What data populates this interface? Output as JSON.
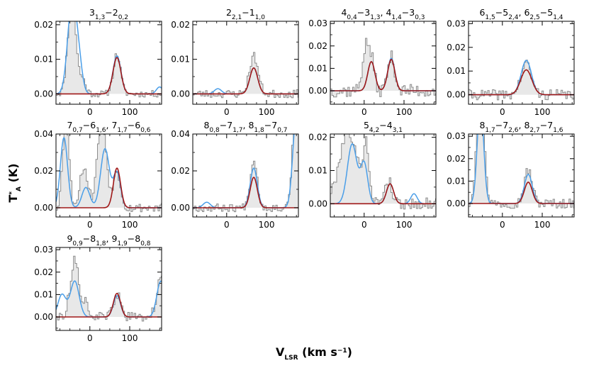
{
  "figure": {
    "xlabel": "V",
    "xlabel_sub": "LSR",
    "xlabel_unit": " (km s",
    "xlabel_sup": "−1",
    "xlabel_end": ")",
    "ylabel": "T",
    "ylabel_sup": "*",
    "ylabel_sub": "A",
    "ylabel_unit": " (K)"
  },
  "colors": {
    "observed": "#8c8c8c",
    "observed_fill": "#e8e8e8",
    "model_blue": "#4a9ee8",
    "model_red": "#a01818",
    "axis": "#000000"
  },
  "chart_data": [
    {
      "type": "line",
      "title_parts": [
        [
          "3",
          "1,3"
        ],
        [
          "−2",
          "0,2"
        ]
      ],
      "xlim": [
        -85,
        180
      ],
      "ylim": [
        -0.003,
        0.021
      ],
      "xticks": [
        "0",
        "100"
      ],
      "xtick_values": [
        0,
        100
      ],
      "yticks": [
        "0.00",
        "0.01",
        "0.02"
      ],
      "ytick_values": [
        0,
        0.01,
        0.02
      ],
      "red_lines": [
        {
          "center": 68,
          "amp": 0.0105,
          "sigma": 10
        }
      ],
      "blue_lines": [
        {
          "center": -45,
          "amp": 0.026,
          "sigma": 11
        },
        {
          "center": -28,
          "amp": 0.008,
          "sigma": 9
        },
        {
          "center": 68,
          "amp": 0.011,
          "sigma": 10
        },
        {
          "center": 175,
          "amp": 0.002,
          "sigma": 8
        }
      ],
      "obs_lines": [
        {
          "center": -45,
          "amp": 0.028,
          "sigma": 10
        },
        {
          "center": -18,
          "amp": 0.004,
          "sigma": 8
        },
        {
          "center": 68,
          "amp": 0.0115,
          "sigma": 9
        }
      ],
      "noise": 0.001,
      "seed": 11
    },
    {
      "type": "line",
      "title_parts": [
        [
          "2",
          "2,1"
        ],
        [
          "−1",
          "1,0"
        ]
      ],
      "xlim": [
        -85,
        180
      ],
      "ylim": [
        -0.003,
        0.021
      ],
      "xticks": [
        "0",
        "100"
      ],
      "xtick_values": [
        0,
        100
      ],
      "yticks": [
        "0.00",
        "0.01",
        "0.02"
      ],
      "ytick_values": [
        0,
        0.01,
        0.02
      ],
      "red_lines": [
        {
          "center": 68,
          "amp": 0.0075,
          "sigma": 10
        }
      ],
      "blue_lines": [
        {
          "center": -22,
          "amp": 0.0015,
          "sigma": 9
        },
        {
          "center": 68,
          "amp": 0.0075,
          "sigma": 10
        }
      ],
      "obs_lines": [
        {
          "center": 68,
          "amp": 0.011,
          "sigma": 11
        }
      ],
      "noise": 0.0012,
      "seed": 23
    },
    {
      "type": "line",
      "title_parts": [
        [
          "4",
          "0,4"
        ],
        [
          "−3",
          "1,3"
        ],
        [
          ", 4",
          "1,4"
        ],
        [
          "−3",
          "0,3"
        ]
      ],
      "xlim": [
        -85,
        180
      ],
      "ylim": [
        -0.006,
        0.031
      ],
      "xticks": [
        "0",
        "100"
      ],
      "xtick_values": [
        0,
        100
      ],
      "yticks": [
        "0.00",
        "0.01",
        "0.02",
        "0.03"
      ],
      "ytick_values": [
        0,
        0.01,
        0.02,
        0.03
      ],
      "red_lines": [
        {
          "center": 18,
          "amp": 0.013,
          "sigma": 9
        },
        {
          "center": 68,
          "amp": 0.014,
          "sigma": 9
        }
      ],
      "blue_lines": [
        {
          "center": 18,
          "amp": 0.013,
          "sigma": 9
        },
        {
          "center": 68,
          "amp": 0.0145,
          "sigma": 9
        }
      ],
      "obs_lines": [
        {
          "center": 5,
          "amp": 0.02,
          "sigma": 9
        },
        {
          "center": 20,
          "amp": 0.01,
          "sigma": 7
        },
        {
          "center": 68,
          "amp": 0.015,
          "sigma": 9
        }
      ],
      "noise": 0.003,
      "seed": 37
    },
    {
      "type": "line",
      "title_parts": [
        [
          "6",
          "1,5"
        ],
        [
          "−5",
          "2,4"
        ],
        [
          ", 6",
          "2,5"
        ],
        [
          "−5",
          "1,4"
        ]
      ],
      "xlim": [
        -85,
        180
      ],
      "ylim": [
        -0.004,
        0.031
      ],
      "xticks": [
        "0",
        "100"
      ],
      "xtick_values": [
        0,
        100
      ],
      "yticks": [
        "0.00",
        "0.01",
        "0.02",
        "0.03"
      ],
      "ytick_values": [
        0,
        0.01,
        0.02,
        0.03
      ],
      "red_lines": [
        {
          "center": 60,
          "amp": 0.0105,
          "sigma": 14
        }
      ],
      "blue_lines": [
        {
          "center": 60,
          "amp": 0.0145,
          "sigma": 13
        }
      ],
      "obs_lines": [
        {
          "center": 60,
          "amp": 0.013,
          "sigma": 13
        }
      ],
      "noise": 0.0022,
      "seed": 41
    },
    {
      "type": "line",
      "title_parts": [
        [
          "7",
          "0,7"
        ],
        [
          "−6",
          "1,6"
        ],
        [
          ", 7",
          "1,7"
        ],
        [
          "−6",
          "0,6"
        ]
      ],
      "xlim": [
        -85,
        180
      ],
      "ylim": [
        -0.005,
        0.04
      ],
      "xticks": [
        "0",
        "100"
      ],
      "xtick_values": [
        0,
        100
      ],
      "yticks": [
        "0.00",
        "0.02",
        "0.04"
      ],
      "ytick_values": [
        0,
        0.02,
        0.04
      ],
      "red_lines": [
        {
          "center": 68,
          "amp": 0.0215,
          "sigma": 9
        }
      ],
      "blue_lines": [
        {
          "center": -65,
          "amp": 0.038,
          "sigma": 9
        },
        {
          "center": -10,
          "amp": 0.011,
          "sigma": 10
        },
        {
          "center": 38,
          "amp": 0.032,
          "sigma": 11
        },
        {
          "center": 68,
          "amp": 0.019,
          "sigma": 9
        }
      ],
      "obs_lines": [
        {
          "center": -60,
          "amp": 0.048,
          "sigma": 8
        },
        {
          "center": -15,
          "amp": 0.022,
          "sigma": 10
        },
        {
          "center": 30,
          "amp": 0.05,
          "sigma": 11
        },
        {
          "center": 68,
          "amp": 0.02,
          "sigma": 9
        }
      ],
      "noise": 0.0025,
      "seed": 53
    },
    {
      "type": "line",
      "title_parts": [
        [
          "8",
          "0,8"
        ],
        [
          "−7",
          "1,7"
        ],
        [
          ", 8",
          "1,8"
        ],
        [
          "−7",
          "0,7"
        ]
      ],
      "xlim": [
        -85,
        180
      ],
      "ylim": [
        -0.005,
        0.04
      ],
      "xticks": [
        "0",
        "100"
      ],
      "xtick_values": [
        0,
        100
      ],
      "yticks": [
        "0.00",
        "0.02",
        "0.04"
      ],
      "ytick_values": [
        0,
        0.02,
        0.04
      ],
      "red_lines": [
        {
          "center": 68,
          "amp": 0.0165,
          "sigma": 9
        }
      ],
      "blue_lines": [
        {
          "center": -50,
          "amp": 0.003,
          "sigma": 9
        },
        {
          "center": 68,
          "amp": 0.0215,
          "sigma": 9
        },
        {
          "center": 175,
          "amp": 0.05,
          "sigma": 9
        }
      ],
      "obs_lines": [
        {
          "center": 68,
          "amp": 0.026,
          "sigma": 9
        },
        {
          "center": 175,
          "amp": 0.06,
          "sigma": 9
        }
      ],
      "noise": 0.0022,
      "seed": 67
    },
    {
      "type": "line",
      "title_parts": [
        [
          "5",
          "4,2"
        ],
        [
          "−4",
          "3,1"
        ]
      ],
      "xlim": [
        -85,
        180
      ],
      "ylim": [
        -0.004,
        0.021
      ],
      "xticks": [
        "0",
        "100"
      ],
      "xtick_values": [
        0,
        100
      ],
      "yticks": [
        "0.00",
        "0.01",
        "0.02"
      ],
      "ytick_values": [
        0,
        0.01,
        0.02
      ],
      "red_lines": [
        {
          "center": 65,
          "amp": 0.006,
          "sigma": 9
        }
      ],
      "blue_lines": [
        {
          "center": -30,
          "amp": 0.018,
          "sigma": 12
        },
        {
          "center": 0,
          "amp": 0.012,
          "sigma": 9
        },
        {
          "center": 65,
          "amp": 0.006,
          "sigma": 9
        },
        {
          "center": 125,
          "amp": 0.003,
          "sigma": 8
        }
      ],
      "obs_lines": [
        {
          "center": -40,
          "amp": 0.022,
          "sigma": 22
        },
        {
          "center": 5,
          "amp": 0.016,
          "sigma": 8
        },
        {
          "center": 60,
          "amp": 0.007,
          "sigma": 10
        }
      ],
      "noise": 0.0018,
      "seed": 79
    },
    {
      "type": "line",
      "title_parts": [
        [
          "8",
          "1,7"
        ],
        [
          "−7",
          "2,6"
        ],
        [
          ", 8",
          "2,7"
        ],
        [
          "−7",
          "1,6"
        ]
      ],
      "xlim": [
        -85,
        180
      ],
      "ylim": [
        -0.006,
        0.031
      ],
      "xticks": [
        "0",
        "100"
      ],
      "xtick_values": [
        0,
        100
      ],
      "yticks": [
        "0.00",
        "0.01",
        "0.02",
        "0.03"
      ],
      "ytick_values": [
        0,
        0.01,
        0.02,
        0.03
      ],
      "red_lines": [
        {
          "center": 65,
          "amp": 0.0095,
          "sigma": 10
        }
      ],
      "blue_lines": [
        {
          "center": -55,
          "amp": 0.045,
          "sigma": 8
        },
        {
          "center": 65,
          "amp": 0.013,
          "sigma": 10
        }
      ],
      "obs_lines": [
        {
          "center": -55,
          "amp": 0.06,
          "sigma": 9
        },
        {
          "center": 65,
          "amp": 0.015,
          "sigma": 10
        }
      ],
      "noise": 0.0022,
      "seed": 97
    },
    {
      "type": "line",
      "title_parts": [
        [
          "9",
          "0,9"
        ],
        [
          "−8",
          "1,8"
        ],
        [
          ", 9",
          "1,9"
        ],
        [
          "−8",
          "0,8"
        ]
      ],
      "xlim": [
        -85,
        180
      ],
      "ylim": [
        -0.006,
        0.031
      ],
      "xticks": [
        "0",
        "100"
      ],
      "xtick_values": [
        0,
        100
      ],
      "yticks": [
        "0.00",
        "0.01",
        "0.02",
        "0.03"
      ],
      "ytick_values": [
        0,
        0.01,
        0.02,
        0.03
      ],
      "red_lines": [
        {
          "center": 68,
          "amp": 0.0105,
          "sigma": 9
        }
      ],
      "blue_lines": [
        {
          "center": -70,
          "amp": 0.01,
          "sigma": 10
        },
        {
          "center": -38,
          "amp": 0.016,
          "sigma": 11
        },
        {
          "center": 68,
          "amp": 0.0095,
          "sigma": 9
        },
        {
          "center": 178,
          "amp": 0.016,
          "sigma": 10
        }
      ],
      "obs_lines": [
        {
          "center": -38,
          "amp": 0.025,
          "sigma": 11
        },
        {
          "center": -10,
          "amp": 0.006,
          "sigma": 8
        },
        {
          "center": 68,
          "amp": 0.01,
          "sigma": 9
        },
        {
          "center": 178,
          "amp": 0.018,
          "sigma": 10
        }
      ],
      "noise": 0.0022,
      "seed": 113
    }
  ]
}
